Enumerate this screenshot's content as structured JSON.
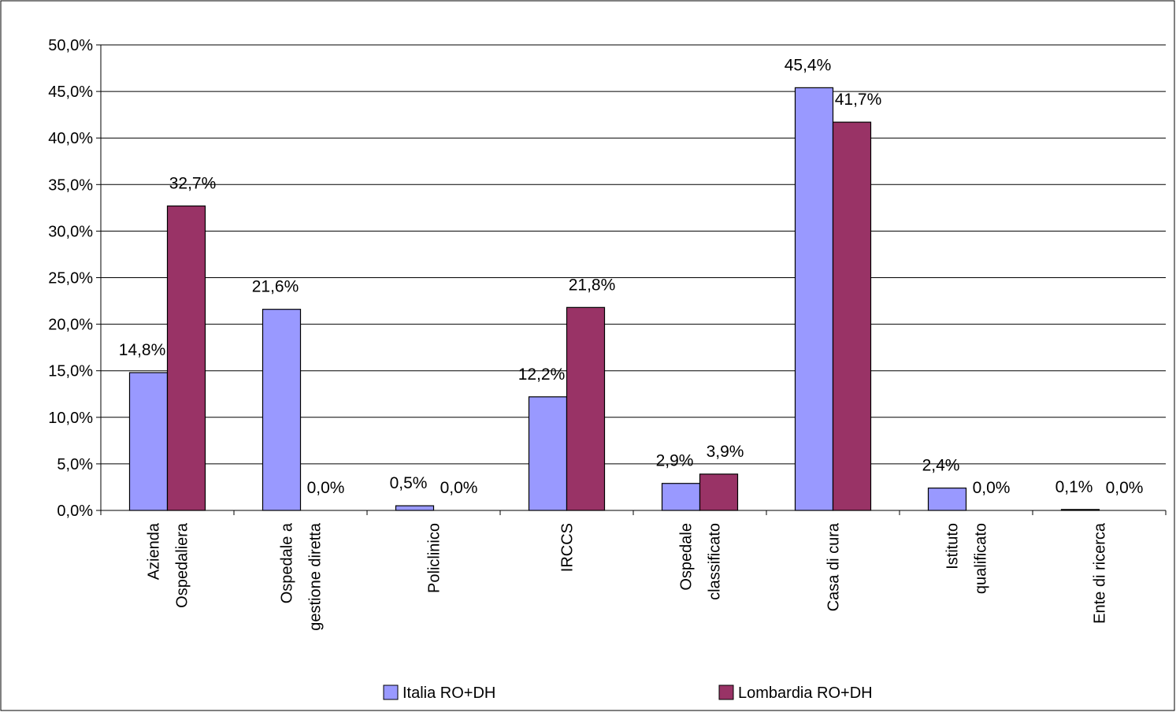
{
  "chart_data": {
    "type": "bar",
    "title": "",
    "xlabel": "",
    "ylabel": "",
    "ylim": [
      0,
      50
    ],
    "yticks": [
      "0,0%",
      "5,0%",
      "10,0%",
      "15,0%",
      "20,0%",
      "25,0%",
      "30,0%",
      "35,0%",
      "40,0%",
      "45,0%",
      "50,0%"
    ],
    "grid": true,
    "legend_position": "bottom",
    "categories": [
      [
        "Azienda",
        "Ospedaliera"
      ],
      [
        "Ospedale a",
        "gestione diretta"
      ],
      [
        "Policlinico"
      ],
      [
        "IRCCS"
      ],
      [
        "Ospedale",
        "classificato"
      ],
      [
        "Casa di cura"
      ],
      [
        "Istituto",
        "qualificato"
      ],
      [
        "Ente di ricerca"
      ]
    ],
    "series": [
      {
        "name": "Italia RO+DH",
        "color": "#9999ff",
        "values": [
          14.8,
          21.6,
          0.5,
          12.2,
          2.9,
          45.4,
          2.4,
          0.1
        ],
        "labels": [
          "14,8%",
          "21,6%",
          "0,5%",
          "12,2%",
          "2,9%",
          "45,4%",
          "2,4%",
          "0,1%"
        ]
      },
      {
        "name": "Lombardia RO+DH",
        "color": "#993366",
        "values": [
          32.7,
          0.0,
          0.0,
          21.8,
          3.9,
          41.7,
          0.0,
          0.0
        ],
        "labels": [
          "32,7%",
          "0,0%",
          "0,0%",
          "21,8%",
          "3,9%",
          "41,7%",
          "0,0%",
          "0,0%"
        ]
      }
    ]
  }
}
